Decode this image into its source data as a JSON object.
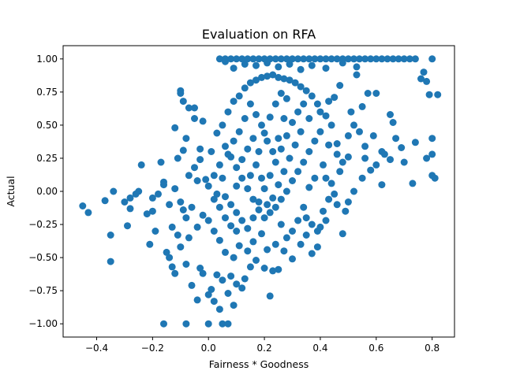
{
  "chart_data": {
    "type": "scatter",
    "title": "Evaluation on RFA",
    "xlabel": "Fairness * Goodness",
    "ylabel": "Actual",
    "xlim": [
      -0.52,
      0.88
    ],
    "ylim": [
      -1.1,
      1.1
    ],
    "xticks": [
      -0.4,
      -0.2,
      0.0,
      0.2,
      0.4,
      0.6,
      0.8
    ],
    "xtick_labels": [
      "−0.4",
      "−0.2",
      "0.0",
      "0.2",
      "0.4",
      "0.6",
      "0.8"
    ],
    "yticks": [
      -1.0,
      -0.75,
      -0.5,
      -0.25,
      0.0,
      0.25,
      0.5,
      0.75,
      1.0
    ],
    "ytick_labels": [
      "−1.00",
      "−0.75",
      "−0.50",
      "−0.25",
      "0.00",
      "0.25",
      "0.50",
      "0.75",
      "1.00"
    ],
    "grid": false,
    "marker_color": "#1f77b4",
    "series": [
      {
        "points": [
          [
            -0.45,
            -0.11
          ],
          [
            -0.43,
            -0.16
          ],
          [
            -0.37,
            -0.07
          ],
          [
            -0.34,
            0.0
          ],
          [
            -0.35,
            -0.33
          ],
          [
            -0.35,
            -0.53
          ],
          [
            -0.3,
            -0.08
          ],
          [
            -0.29,
            -0.26
          ],
          [
            -0.28,
            -0.05
          ],
          [
            -0.28,
            -0.13
          ],
          [
            -0.25,
            0.0
          ],
          [
            -0.24,
            0.2
          ],
          [
            -0.26,
            -0.02
          ],
          [
            -0.22,
            -0.17
          ],
          [
            -0.21,
            -0.4
          ],
          [
            -0.2,
            -0.05
          ],
          [
            -0.19,
            -0.3
          ],
          [
            -0.17,
            0.22
          ],
          [
            -0.16,
            0.07
          ],
          [
            -0.15,
            -0.46
          ],
          [
            -0.14,
            -0.5
          ],
          [
            -0.12,
            0.48
          ],
          [
            -0.13,
            -0.57
          ],
          [
            -0.12,
            -0.62
          ],
          [
            -0.11,
            0.25
          ],
          [
            -0.1,
            -0.42
          ],
          [
            -0.09,
            0.31
          ],
          [
            -0.08,
            0.4
          ],
          [
            -0.07,
            0.63
          ],
          [
            -0.08,
            -0.55
          ],
          [
            -0.06,
            -0.71
          ],
          [
            -0.05,
            0.55
          ],
          [
            -0.07,
            -0.35
          ],
          [
            -0.04,
            0.08
          ],
          [
            -0.03,
            0.32
          ],
          [
            -0.03,
            -0.58
          ],
          [
            -0.1,
            0.76
          ],
          [
            -0.1,
            0.74
          ],
          [
            -0.09,
            0.68
          ],
          [
            -0.05,
            0.63
          ],
          [
            -0.02,
            0.53
          ],
          [
            -0.02,
            -0.62
          ],
          [
            -0.04,
            -0.82
          ],
          [
            0.01,
            -0.74
          ],
          [
            0.0,
            -0.78
          ],
          [
            0.02,
            -0.83
          ],
          [
            0.04,
            -0.89
          ],
          [
            0.03,
            -0.63
          ],
          [
            0.05,
            -0.67
          ],
          [
            0.07,
            -0.77
          ],
          [
            0.08,
            -0.64
          ],
          [
            0.09,
            -0.86
          ],
          [
            0.1,
            -0.7
          ],
          [
            0.12,
            -0.73
          ],
          [
            0.13,
            -0.66
          ],
          [
            0.15,
            -0.57
          ],
          [
            0.17,
            -0.52
          ],
          [
            0.2,
            -0.58
          ],
          [
            0.22,
            -0.79
          ],
          [
            0.23,
            -0.6
          ],
          [
            0.25,
            -0.59
          ],
          [
            0.27,
            -0.45
          ],
          [
            0.3,
            -0.51
          ],
          [
            0.33,
            -0.4
          ],
          [
            0.35,
            -0.33
          ],
          [
            0.37,
            -0.47
          ],
          [
            0.39,
            -0.42
          ],
          [
            0.4,
            -0.27
          ],
          [
            0.42,
            -0.22
          ],
          [
            0.46,
            -0.1
          ],
          [
            0.49,
            -0.15
          ],
          [
            0.48,
            -0.32
          ],
          [
            0.5,
            -0.08
          ],
          [
            0.52,
            0.0
          ],
          [
            0.55,
            0.1
          ],
          [
            0.56,
            0.25
          ],
          [
            0.6,
            0.2
          ],
          [
            0.62,
            0.3
          ],
          [
            0.66,
            0.52
          ],
          [
            0.67,
            0.4
          ],
          [
            0.7,
            0.22
          ],
          [
            0.73,
            0.06
          ],
          [
            0.76,
            0.85
          ],
          [
            0.77,
            0.9
          ],
          [
            0.78,
            0.83
          ],
          [
            0.79,
            0.73
          ],
          [
            0.8,
            0.4
          ],
          [
            0.8,
            0.28
          ],
          [
            0.8,
            0.12
          ],
          [
            0.81,
            0.1
          ],
          [
            0.82,
            0.73
          ],
          [
            0.78,
            0.25
          ],
          [
            0.74,
            0.37
          ],
          [
            0.69,
            0.33
          ],
          [
            0.65,
            0.24
          ],
          [
            0.63,
            0.28
          ],
          [
            0.59,
            0.42
          ],
          [
            0.57,
            0.74
          ],
          [
            0.6,
            0.74
          ],
          [
            0.65,
            0.58
          ],
          [
            0.62,
            0.05
          ],
          [
            0.55,
            0.64
          ],
          [
            0.53,
            0.88
          ],
          [
            0.51,
            0.6
          ],
          [
            0.47,
            0.8
          ],
          [
            0.45,
            0.71
          ],
          [
            0.43,
            0.68
          ],
          [
            0.42,
            0.57
          ],
          [
            0.44,
            0.5
          ],
          [
            0.46,
            0.36
          ],
          [
            0.48,
            0.22
          ],
          [
            0.47,
            0.15
          ],
          [
            0.43,
            0.35
          ],
          [
            0.41,
            0.2
          ],
          [
            0.38,
            0.1
          ],
          [
            0.36,
            0.03
          ],
          [
            0.34,
            -0.12
          ],
          [
            0.32,
            -0.22
          ],
          [
            0.3,
            -0.3
          ],
          [
            0.28,
            -0.35
          ],
          [
            0.26,
            -0.25
          ],
          [
            0.24,
            -0.4
          ],
          [
            0.21,
            -0.44
          ],
          [
            0.19,
            -0.32
          ],
          [
            0.16,
            -0.38
          ],
          [
            0.14,
            -0.45
          ],
          [
            0.11,
            -0.41
          ],
          [
            0.09,
            -0.5
          ],
          [
            0.06,
            -0.46
          ],
          [
            0.04,
            -0.37
          ],
          [
            0.02,
            -0.3
          ],
          [
            0.0,
            -0.22
          ],
          [
            -0.02,
            -0.18
          ],
          [
            -0.04,
            -0.27
          ],
          [
            -0.06,
            -0.12
          ],
          [
            -0.08,
            -0.2
          ],
          [
            -0.1,
            -0.08
          ],
          [
            -0.12,
            0.02
          ],
          [
            -0.14,
            -0.1
          ],
          [
            -0.16,
            0.05
          ],
          [
            -0.18,
            -0.02
          ],
          [
            -0.2,
            -0.15
          ],
          [
            -0.13,
            -0.27
          ],
          [
            -0.11,
            -0.33
          ],
          [
            -0.09,
            -0.14
          ],
          [
            -0.07,
            0.12
          ],
          [
            -0.05,
            0.18
          ],
          [
            -0.03,
            0.24
          ],
          [
            -0.01,
            0.09
          ],
          [
            0.01,
            0.3
          ],
          [
            0.03,
            0.44
          ],
          [
            0.05,
            0.5
          ],
          [
            0.07,
            0.6
          ],
          [
            0.09,
            0.68
          ],
          [
            0.11,
            0.72
          ],
          [
            0.13,
            0.78
          ],
          [
            0.15,
            0.82
          ],
          [
            0.17,
            0.84
          ],
          [
            0.19,
            0.86
          ],
          [
            0.21,
            0.87
          ],
          [
            0.23,
            0.88
          ],
          [
            0.25,
            0.86
          ],
          [
            0.27,
            0.85
          ],
          [
            0.29,
            0.84
          ],
          [
            0.31,
            0.82
          ],
          [
            0.33,
            0.79
          ],
          [
            0.35,
            0.76
          ],
          [
            0.37,
            0.72
          ],
          [
            0.39,
            0.66
          ],
          [
            0.4,
            0.6
          ],
          [
            0.4,
            0.45
          ],
          [
            0.38,
            0.38
          ],
          [
            0.36,
            0.3
          ],
          [
            0.34,
            0.22
          ],
          [
            0.32,
            0.15
          ],
          [
            0.3,
            0.08
          ],
          [
            0.28,
            0.0
          ],
          [
            0.26,
            -0.06
          ],
          [
            0.24,
            -0.12
          ],
          [
            0.22,
            -0.16
          ],
          [
            0.2,
            -0.2
          ],
          [
            0.18,
            -0.14
          ],
          [
            0.16,
            -0.06
          ],
          [
            0.14,
            0.02
          ],
          [
            0.12,
            0.1
          ],
          [
            0.1,
            0.18
          ],
          [
            0.08,
            0.26
          ],
          [
            0.06,
            0.34
          ],
          [
            0.04,
            0.2
          ],
          [
            0.02,
            0.12
          ],
          [
            0.0,
            0.04
          ],
          [
            0.02,
            -0.06
          ],
          [
            0.04,
            -0.12
          ],
          [
            0.06,
            -0.2
          ],
          [
            0.08,
            -0.26
          ],
          [
            0.1,
            -0.3
          ],
          [
            0.12,
            -0.22
          ],
          [
            0.14,
            -0.28
          ],
          [
            0.16,
            -0.2
          ],
          [
            0.18,
            -0.08
          ],
          [
            0.2,
            0.02
          ],
          [
            0.22,
            0.12
          ],
          [
            0.24,
            0.22
          ],
          [
            0.26,
            0.32
          ],
          [
            0.28,
            0.42
          ],
          [
            0.3,
            0.52
          ],
          [
            0.32,
            0.6
          ],
          [
            0.34,
            0.66
          ],
          [
            0.36,
            0.55
          ],
          [
            0.33,
            0.45
          ],
          [
            0.31,
            0.35
          ],
          [
            0.29,
            0.25
          ],
          [
            0.27,
            0.15
          ],
          [
            0.25,
            0.05
          ],
          [
            0.23,
            -0.05
          ],
          [
            0.21,
            0.38
          ],
          [
            0.19,
            0.5
          ],
          [
            0.17,
            0.58
          ],
          [
            0.15,
            0.66
          ],
          [
            0.13,
            0.55
          ],
          [
            0.11,
            0.45
          ],
          [
            0.09,
            0.38
          ],
          [
            0.07,
            0.28
          ],
          [
            0.05,
            0.1
          ],
          [
            0.03,
            -0.02
          ],
          [
            0.18,
            0.3
          ],
          [
            0.2,
            0.44
          ],
          [
            0.22,
            0.56
          ],
          [
            0.24,
            0.66
          ],
          [
            0.26,
            0.74
          ],
          [
            0.28,
            0.7
          ],
          [
            0.16,
            0.4
          ],
          [
            0.14,
            0.32
          ],
          [
            0.12,
            0.24
          ],
          [
            0.1,
            0.04
          ],
          [
            0.08,
            -0.1
          ],
          [
            0.06,
            -0.04
          ],
          [
            0.1,
            -0.16
          ],
          [
            0.15,
            0.12
          ],
          [
            0.17,
            0.2
          ],
          [
            0.19,
            0.1
          ],
          [
            0.21,
            -0.1
          ],
          [
            0.23,
            0.3
          ],
          [
            0.25,
            0.4
          ],
          [
            0.27,
            0.55
          ],
          [
            0.44,
            0.06
          ],
          [
            0.45,
            -0.02
          ],
          [
            0.43,
            -0.06
          ],
          [
            0.41,
            -0.15
          ],
          [
            0.39,
            -0.3
          ],
          [
            0.37,
            -0.25
          ],
          [
            0.35,
            -0.2
          ],
          [
            0.42,
            0.1
          ],
          [
            0.46,
            0.28
          ],
          [
            0.5,
            0.42
          ],
          [
            0.52,
            0.5
          ],
          [
            0.54,
            0.45
          ],
          [
            0.56,
            0.34
          ],
          [
            0.58,
            0.16
          ],
          [
            0.5,
            0.26
          ],
          [
            0.06,
            0.98
          ],
          [
            0.09,
            0.93
          ],
          [
            0.13,
            0.96
          ],
          [
            0.17,
            0.95
          ],
          [
            0.21,
            0.97
          ],
          [
            0.25,
            0.94
          ],
          [
            0.29,
            0.96
          ],
          [
            0.33,
            0.92
          ],
          [
            0.37,
            0.95
          ],
          [
            0.42,
            0.93
          ],
          [
            0.48,
            0.97
          ],
          [
            0.53,
            0.94
          ]
        ]
      },
      {
        "points_at_y_1": [
          0.04,
          0.06,
          0.08,
          0.1,
          0.12,
          0.14,
          0.16,
          0.18,
          0.2,
          0.22,
          0.24,
          0.26,
          0.28,
          0.3,
          0.32,
          0.34,
          0.36,
          0.38,
          0.4,
          0.42,
          0.44,
          0.46,
          0.48,
          0.5,
          0.52,
          0.54,
          0.56,
          0.58,
          0.6,
          0.62,
          0.64,
          0.66,
          0.68,
          0.7,
          0.72,
          0.74,
          0.8
        ],
        "points_at_y_minus_1": [
          -0.16,
          -0.08,
          0.0,
          0.05,
          0.07
        ]
      }
    ]
  }
}
